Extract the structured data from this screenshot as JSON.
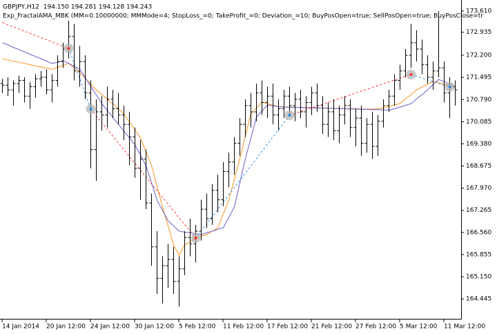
{
  "chart_data": {
    "type": "ohlc",
    "title": "GBPJPY,H12  194.150 194.281 194.128 194.243",
    "subtitle": "Exp_FractalAMA_MBK (MM=0.10000000; MMMode=4; StopLoss_=0; TakeProfit_=0; Deviation_=10; BuyPosOpen=true; SellPosOpen=true; BuyPosClose=tr",
    "categories": [
      "14 Jan 2014",
      null,
      null,
      null,
      null,
      null,
      null,
      null,
      "20 Jan 12:00",
      null,
      null,
      null,
      null,
      null,
      null,
      null,
      "24 Jan 12:00",
      null,
      null,
      null,
      null,
      null,
      null,
      null,
      "30 Jan 12:00",
      null,
      null,
      null,
      null,
      null,
      null,
      null,
      "5 Feb 12:00",
      null,
      null,
      null,
      null,
      null,
      null,
      null,
      "11 Feb 12:00",
      null,
      null,
      null,
      null,
      null,
      null,
      null,
      "17 Feb 12:00",
      null,
      null,
      null,
      null,
      null,
      null,
      null,
      "21 Feb 12:00",
      null,
      null,
      null,
      null,
      null,
      null,
      null,
      "27 Feb 12:00",
      null,
      null,
      null,
      null,
      null,
      null,
      null,
      "5 Mar 12:00",
      null,
      null,
      null,
      null,
      null,
      null,
      null,
      "11 Mar 12:00",
      null,
      null
    ],
    "open": [
      171.3,
      171.25,
      171.1,
      171.3,
      171.4,
      170.9,
      171.2,
      171.45,
      171.5,
      171.1,
      171.4,
      172.0,
      172.4,
      172.8,
      171.7,
      172.0,
      171.0,
      169.2,
      170.4,
      170.3,
      170.8,
      170.5,
      170.3,
      170.0,
      169.6,
      168.6,
      168.9,
      167.5,
      166.1,
      165.1,
      165.5,
      165.7,
      165.0,
      165.4,
      166.4,
      166.2,
      166.6,
      167.3,
      167.0,
      167.9,
      167.6,
      168.5,
      168.8,
      169.4,
      170.0,
      170.6,
      170.4,
      171.0,
      170.7,
      170.9,
      170.3,
      170.5,
      170.9,
      170.6,
      170.8,
      170.4,
      170.7,
      171.0,
      170.6,
      170.0,
      170.4,
      169.8,
      170.3,
      170.6,
      169.9,
      170.2,
      169.4,
      170.0,
      169.3,
      170.1,
      170.6,
      170.9,
      171.4,
      171.7,
      172.2,
      172.6,
      172.4,
      171.9,
      171.5,
      171.7,
      171.8,
      171.0,
      171.2
    ],
    "high": [
      171.45,
      171.5,
      171.4,
      171.55,
      171.5,
      171.35,
      171.6,
      171.7,
      171.75,
      171.6,
      172.2,
      172.6,
      173.3,
      173.2,
      172.5,
      172.2,
      171.4,
      170.8,
      170.9,
      171.2,
      171.1,
      171.0,
      170.6,
      170.4,
      169.9,
      169.5,
      169.2,
      167.8,
      166.6,
      165.8,
      166.2,
      166.1,
      165.8,
      166.6,
      167.0,
      166.8,
      167.6,
      167.8,
      168.1,
      168.4,
      168.8,
      169.1,
      169.6,
      170.2,
      170.8,
      171.0,
      171.3,
      171.4,
      171.2,
      171.3,
      170.8,
      171.1,
      171.2,
      171.0,
      171.1,
      170.9,
      171.2,
      171.3,
      170.9,
      170.7,
      170.8,
      170.6,
      170.9,
      170.8,
      170.5,
      170.6,
      170.2,
      170.4,
      170.3,
      170.8,
      171.1,
      171.6,
      171.9,
      172.4,
      173.2,
      173.0,
      172.7,
      172.2,
      172.0,
      173.6,
      172.0,
      171.5,
      171.4
    ],
    "low": [
      171.0,
      170.9,
      170.6,
      171.0,
      170.7,
      170.5,
      170.85,
      171.2,
      170.95,
      170.7,
      171.2,
      171.8,
      172.1,
      171.4,
      171.2,
      170.8,
      168.6,
      168.2,
      169.8,
      169.9,
      170.2,
      170.0,
      169.5,
      168.7,
      168.3,
      167.6,
      167.3,
      165.5,
      164.6,
      164.3,
      164.8,
      164.6,
      164.2,
      165.2,
      165.8,
      165.6,
      166.3,
      166.7,
      166.8,
      167.2,
      167.4,
      168.0,
      168.4,
      169.0,
      169.6,
      169.9,
      170.1,
      170.3,
      170.2,
      170.0,
      169.8,
      170.2,
      170.3,
      170.1,
      170.2,
      169.9,
      170.3,
      170.4,
      169.7,
      169.6,
      169.5,
      169.4,
      170.0,
      169.6,
      169.3,
      169.0,
      169.1,
      168.9,
      169.0,
      169.9,
      170.4,
      170.6,
      171.1,
      171.5,
      171.8,
      172.0,
      171.6,
      171.3,
      171.1,
      171.5,
      170.7,
      170.2,
      170.6
    ],
    "close": [
      171.25,
      171.1,
      171.3,
      171.4,
      170.9,
      171.2,
      171.45,
      171.5,
      171.1,
      171.4,
      172.0,
      172.4,
      172.8,
      171.7,
      172.0,
      171.0,
      169.2,
      170.4,
      170.3,
      170.8,
      170.5,
      170.3,
      170.0,
      169.6,
      168.6,
      168.9,
      167.5,
      166.1,
      165.1,
      165.5,
      165.7,
      165.0,
      165.4,
      166.4,
      166.2,
      166.6,
      167.3,
      167.0,
      167.9,
      167.6,
      168.5,
      168.8,
      169.4,
      170.0,
      170.6,
      170.4,
      171.0,
      170.7,
      170.9,
      170.3,
      170.5,
      170.9,
      170.6,
      170.8,
      170.4,
      170.7,
      171.0,
      170.6,
      170.0,
      170.4,
      169.8,
      170.3,
      170.6,
      169.9,
      170.2,
      169.4,
      170.0,
      169.3,
      170.1,
      170.6,
      170.9,
      171.4,
      171.7,
      172.2,
      172.6,
      172.4,
      171.9,
      171.5,
      171.7,
      171.8,
      171.0,
      171.2,
      171.1
    ],
    "bar_color": "#000000",
    "lines": [
      {
        "color": "#f7931e",
        "values": [
          172.09,
          172.05,
          172.01,
          171.98,
          171.94,
          171.9,
          171.86,
          171.83,
          171.79,
          171.76,
          171.82,
          171.88,
          171.94,
          171.8,
          171.65,
          171.47,
          171.28,
          171.1,
          170.95,
          170.8,
          170.66,
          170.5,
          170.34,
          170.08,
          169.83,
          169.57,
          169.13,
          168.69,
          168.03,
          167.37,
          166.77,
          166.16,
          165.83,
          166.16,
          166.27,
          166.38,
          166.44,
          166.49,
          166.6,
          166.71,
          167.15,
          167.59,
          168.25,
          168.91,
          169.63,
          170.34,
          170.52,
          170.71,
          170.66,
          170.61,
          170.56,
          170.56,
          170.55,
          170.55,
          170.54,
          170.54,
          170.53,
          170.53,
          170.52,
          170.52,
          170.51,
          170.51,
          170.5,
          170.5,
          170.5,
          170.49,
          170.49,
          170.49,
          170.49,
          170.53,
          170.57,
          170.62,
          170.66,
          170.81,
          170.95,
          171.1,
          171.19,
          171.28,
          171.37,
          171.33,
          171.28,
          171.22,
          171.15
        ]
      },
      {
        "color": "#6a5acd",
        "values": [
          172.6,
          172.53,
          172.45,
          172.38,
          172.31,
          172.23,
          172.16,
          172.09,
          172.01,
          171.94,
          171.98,
          172.03,
          171.94,
          171.85,
          171.76,
          171.49,
          171.21,
          170.94,
          170.66,
          170.44,
          170.22,
          170.0,
          169.78,
          169.57,
          169.35,
          169.02,
          168.69,
          168.14,
          167.59,
          167.26,
          166.93,
          166.77,
          166.6,
          166.57,
          166.55,
          166.52,
          166.49,
          166.55,
          166.6,
          166.66,
          166.71,
          167.04,
          167.37,
          168.14,
          168.91,
          169.57,
          170.23,
          170.43,
          170.62,
          170.59,
          170.56,
          170.55,
          170.55,
          170.54,
          170.54,
          170.53,
          170.53,
          170.52,
          170.52,
          170.51,
          170.51,
          170.5,
          170.5,
          170.49,
          170.49,
          170.48,
          170.48,
          170.47,
          170.47,
          170.46,
          170.45,
          170.5,
          170.55,
          170.61,
          170.66,
          170.81,
          170.95,
          171.1,
          171.27,
          171.43,
          171.36,
          171.28,
          171.21
        ]
      }
    ],
    "zigzag": {
      "x": [
        0,
        12,
        16,
        35,
        52,
        74,
        81
      ],
      "values": [
        173.24,
        172.42,
        170.49,
        166.38,
        170.29,
        171.59,
        171.19
      ],
      "colors": [
        "#ff3030",
        "#2e8fe8"
      ]
    },
    "ylim": [
      163.81,
      173.96
    ],
    "yticks": [
      {
        "value": 173.61,
        "label": "173.610"
      },
      172.935,
      {
        "value": 172.2,
        "label": "172.200"
      },
      171.495,
      {
        "value": 170.79,
        "label": "170.790"
      },
      170.085,
      {
        "value": 169.38,
        "label": "169.380"
      },
      168.675,
      {
        "value": 167.97,
        "label": "167.970"
      },
      167.265,
      {
        "value": 166.56,
        "label": "166.560"
      },
      165.855,
      {
        "value": 165.15,
        "label": "165.150"
      },
      164.445
    ]
  }
}
